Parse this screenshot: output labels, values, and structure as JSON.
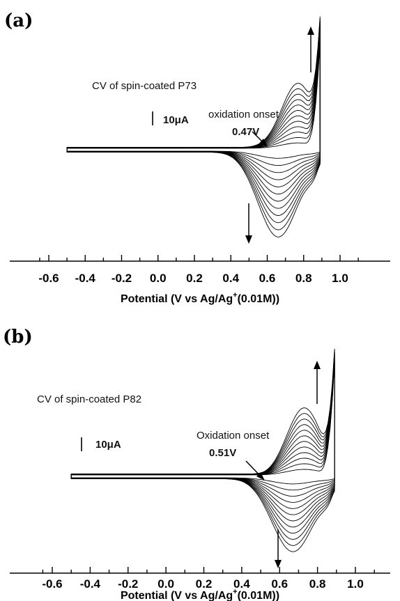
{
  "chart_data": [
    {
      "type": "line",
      "panel_label": "(a)",
      "title": "CV of spin-coated P73",
      "xlabel_main": "Potential (V vs Ag/Ag",
      "xlabel_sup": "+",
      "xlabel_tail": "(0.01M))",
      "ylabel": "",
      "xlim": [
        -0.65,
        1.1
      ],
      "ticks": [
        -0.6,
        -0.4,
        -0.2,
        0.0,
        0.2,
        0.4,
        0.6,
        0.8,
        1.0
      ],
      "tick_labels": [
        "-0.6",
        "-0.4",
        "-0.2",
        "0.0",
        "0.2",
        "0.4",
        "0.6",
        "0.8",
        "1.0"
      ],
      "scale_bar_label": "10μA",
      "onset_label": "oxidation onset",
      "onset_value": "0.47V",
      "onset_potential": 0.47,
      "scan_range": [
        -0.5,
        0.89
      ],
      "peak_potentials": {
        "ox": 0.77,
        "red": 0.66
      },
      "n_cycles": 12,
      "grid": false,
      "legend": "none"
    },
    {
      "type": "line",
      "panel_label": "(b)",
      "title": "CV of spin-coated P82",
      "xlabel_main": "Potential (V vs Ag/Ag",
      "xlabel_sup": "+",
      "xlabel_tail": "(0.01M))",
      "ylabel": "",
      "xlim": [
        -0.65,
        1.1
      ],
      "ticks": [
        -0.6,
        -0.4,
        -0.2,
        0.0,
        0.2,
        0.4,
        0.6,
        0.8,
        1.0
      ],
      "tick_labels": [
        "-0.6",
        "-0.4",
        "-0.2",
        "0.0",
        "0.2",
        "0.4",
        "0.6",
        "0.8",
        "1.0"
      ],
      "scale_bar_label": "10μA",
      "onset_label": "Oxidation onset",
      "onset_value": "0.51V",
      "onset_potential": 0.51,
      "scan_range": [
        -0.5,
        0.89
      ],
      "peak_potentials": {
        "ox": 0.73,
        "red": 0.67
      },
      "n_cycles": 12,
      "grid": false,
      "legend": "none"
    }
  ]
}
